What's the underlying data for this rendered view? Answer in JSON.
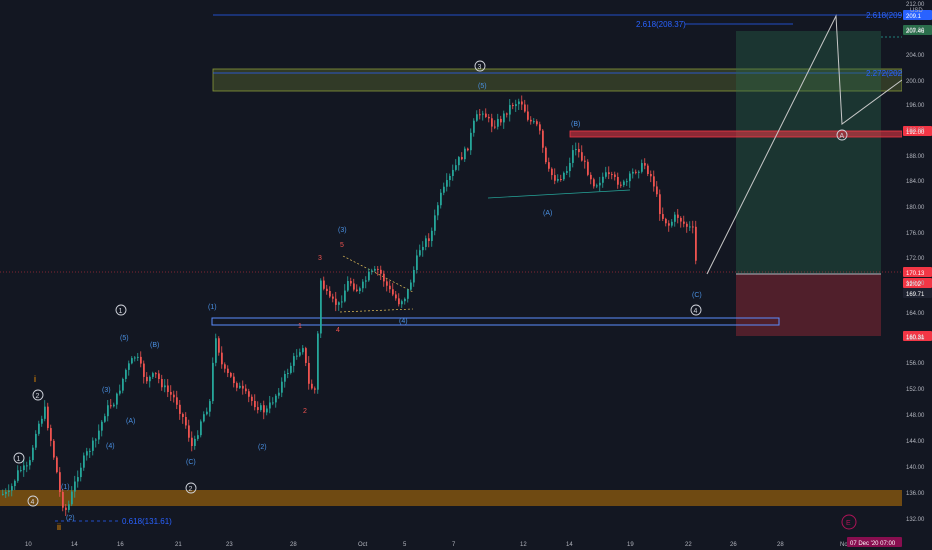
{
  "price_axis": {
    "currency": "USD",
    "ticks": [
      "212.00",
      "208.00",
      "204.00",
      "200.00",
      "196.00",
      "192.00",
      "188.00",
      "184.00",
      "180.00",
      "176.00",
      "172.00",
      "168.00",
      "164.00",
      "160.00",
      "156.00",
      "152.00",
      "148.00",
      "144.00",
      "140.00",
      "136.00",
      "132.00"
    ],
    "badges": [
      {
        "text": "209.1",
        "color": "#2962ff"
      },
      {
        "text": "207.46",
        "color": "#2b6e4c"
      },
      {
        "text": "192.00",
        "color": "#f23645"
      },
      {
        "text": "170.13",
        "color": "#f23645"
      },
      {
        "text": "32:02",
        "color": "#f23645"
      },
      {
        "text": "169.71",
        "color": "#1e2230"
      },
      {
        "text": "160.31",
        "color": "#f23645"
      }
    ]
  },
  "time_axis": {
    "labels": [
      "10",
      "14",
      "16",
      "21",
      "23",
      "28",
      "Oct",
      "5",
      "7",
      "12",
      "14",
      "19",
      "22",
      "26",
      "28",
      "No"
    ],
    "crosshair_label": "07 Dec '20   07:00"
  },
  "fib_labels": {
    "ext_2618_top": "2.618(209.1",
    "ext_2618_mid": "2.618(208.37)",
    "ext_2272": "2.272(202.)",
    "retrace_0618": "0.618(131.61)"
  },
  "wave_labels": {
    "circled": [
      "1",
      "2",
      "3",
      "4",
      "5",
      "3",
      "4",
      "A"
    ],
    "roman_i": "i",
    "roman_ii": "ii",
    "blue": [
      "(1)",
      "(2)",
      "(3)",
      "(4)",
      "(5)",
      "(A)",
      "(B)",
      "(C)",
      "(1)",
      "(2)",
      "(3)",
      "(4)",
      "(5)",
      "(A)",
      "(B)",
      "(C)"
    ],
    "orange": [
      "3",
      "5",
      "1",
      "4",
      "2"
    ]
  },
  "events_badge": "E",
  "colors": {
    "background": "#131722",
    "up_candle": "#26a69a",
    "down_candle": "#ef5350",
    "wave_blue": "#2962ff",
    "wave_orange": "#ff9800",
    "target_zone": "#2b6e4c",
    "stop_zone": "#f23645"
  }
}
